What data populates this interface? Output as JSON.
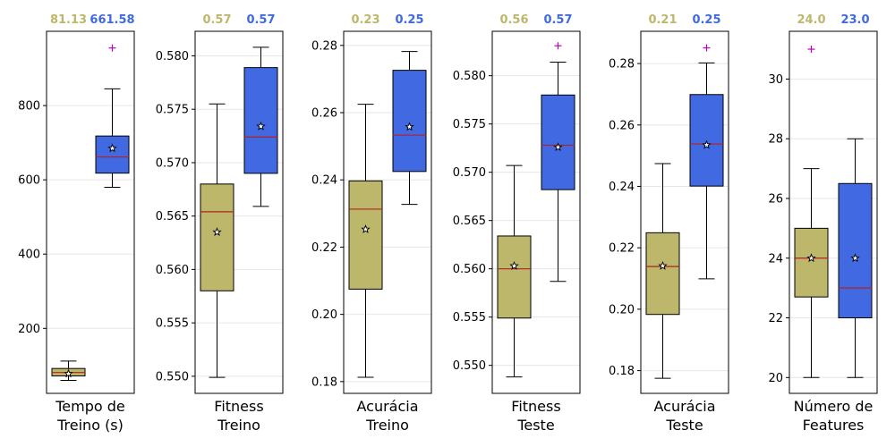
{
  "colors": {
    "treino_box": "#BDB76B",
    "teste_box": "#4169E1",
    "median_line": "#B22222",
    "outlier": "#BF00BF",
    "grid": "#e6e6e6"
  },
  "chart_data": [
    {
      "type": "box",
      "xlabel": [
        "Tempo de",
        "Treino (s)"
      ],
      "ylim": [
        25,
        1000
      ],
      "yticks": [
        200,
        400,
        600,
        800
      ],
      "ytick_labels": [
        "200",
        "400",
        "600",
        "800"
      ],
      "median_labels": [
        "81.13",
        "661.58"
      ],
      "boxes": [
        {
          "whislo": 60,
          "q1": 72,
          "med": 81.13,
          "q3": 92,
          "whishi": 112,
          "mean": 78,
          "fliers": []
        },
        {
          "whislo": 580,
          "q1": 618,
          "med": 661.58,
          "q3": 718,
          "whishi": 845,
          "mean": 685,
          "fliers": [
            955
          ]
        }
      ]
    },
    {
      "type": "box",
      "xlabel": [
        "Fitness",
        "Treino"
      ],
      "ylim": [
        0.5484,
        0.5823
      ],
      "yticks": [
        0.55,
        0.555,
        0.56,
        0.565,
        0.57,
        0.575,
        0.58
      ],
      "ytick_labels": [
        "0.550",
        "0.555",
        "0.560",
        "0.565",
        "0.570",
        "0.575",
        "0.580"
      ],
      "median_labels": [
        "0.57",
        "0.57"
      ],
      "boxes": [
        {
          "whislo": 0.5499,
          "q1": 0.558,
          "med": 0.5654,
          "q3": 0.568,
          "whishi": 0.5755,
          "mean": 0.5635,
          "fliers": []
        },
        {
          "whislo": 0.5659,
          "q1": 0.569,
          "med": 0.5724,
          "q3": 0.5789,
          "whishi": 0.5808,
          "mean": 0.5734,
          "fliers": []
        }
      ]
    },
    {
      "type": "box",
      "xlabel": [
        "Acurácia",
        "Treino"
      ],
      "ylim": [
        0.1765,
        0.2842
      ],
      "yticks": [
        0.18,
        0.2,
        0.22,
        0.24,
        0.26,
        0.28
      ],
      "ytick_labels": [
        "0.18",
        "0.20",
        "0.22",
        "0.24",
        "0.26",
        "0.28"
      ],
      "median_labels": [
        "0.23",
        "0.25"
      ],
      "boxes": [
        {
          "whislo": 0.1813,
          "q1": 0.2075,
          "med": 0.2313,
          "q3": 0.2397,
          "whishi": 0.2625,
          "mean": 0.2253,
          "fliers": []
        },
        {
          "whislo": 0.2327,
          "q1": 0.2425,
          "med": 0.2533,
          "q3": 0.2726,
          "whishi": 0.2782,
          "mean": 0.2558,
          "fliers": []
        }
      ]
    },
    {
      "type": "box",
      "xlabel": [
        "Fitness",
        "Teste"
      ],
      "ylim": [
        0.5471,
        0.5846
      ],
      "yticks": [
        0.55,
        0.555,
        0.56,
        0.565,
        0.57,
        0.575,
        0.58
      ],
      "ytick_labels": [
        "0.550",
        "0.555",
        "0.560",
        "0.565",
        "0.570",
        "0.575",
        "0.580"
      ],
      "median_labels": [
        "0.56",
        "0.57"
      ],
      "boxes": [
        {
          "whislo": 0.5488,
          "q1": 0.5549,
          "med": 0.56,
          "q3": 0.5634,
          "whishi": 0.5707,
          "mean": 0.5603,
          "fliers": []
        },
        {
          "whislo": 0.5587,
          "q1": 0.5682,
          "med": 0.5728,
          "q3": 0.578,
          "whishi": 0.5814,
          "mean": 0.5726,
          "fliers": [
            0.5831
          ]
        }
      ]
    },
    {
      "type": "box",
      "xlabel": [
        "Acurácia",
        "Teste"
      ],
      "ylim": [
        0.1726,
        0.2905
      ],
      "yticks": [
        0.18,
        0.2,
        0.22,
        0.24,
        0.26,
        0.28
      ],
      "ytick_labels": [
        "0.18",
        "0.20",
        "0.22",
        "0.24",
        "0.26",
        "0.28"
      ],
      "median_labels": [
        "0.21",
        "0.25"
      ],
      "boxes": [
        {
          "whislo": 0.1775,
          "q1": 0.1983,
          "med": 0.2139,
          "q3": 0.2249,
          "whishi": 0.2474,
          "mean": 0.2141,
          "fliers": []
        },
        {
          "whislo": 0.2099,
          "q1": 0.2401,
          "med": 0.2538,
          "q3": 0.2699,
          "whishi": 0.2802,
          "mean": 0.2535,
          "fliers": [
            0.2851
          ]
        }
      ]
    },
    {
      "type": "box",
      "xlabel": [
        "Número de",
        "Features"
      ],
      "ylim": [
        19.47,
        31.6
      ],
      "yticks": [
        20,
        22,
        24,
        26,
        28,
        30
      ],
      "ytick_labels": [
        "20",
        "22",
        "24",
        "26",
        "28",
        "30"
      ],
      "median_labels": [
        "24.0",
        "23.0"
      ],
      "boxes": [
        {
          "whislo": 20,
          "q1": 22.7,
          "med": 24,
          "q3": 25,
          "whishi": 27,
          "mean": 24,
          "fliers": [
            31
          ]
        },
        {
          "whislo": 20,
          "q1": 22,
          "med": 23,
          "q3": 26.5,
          "whishi": 28,
          "mean": 24,
          "fliers": []
        }
      ]
    }
  ]
}
